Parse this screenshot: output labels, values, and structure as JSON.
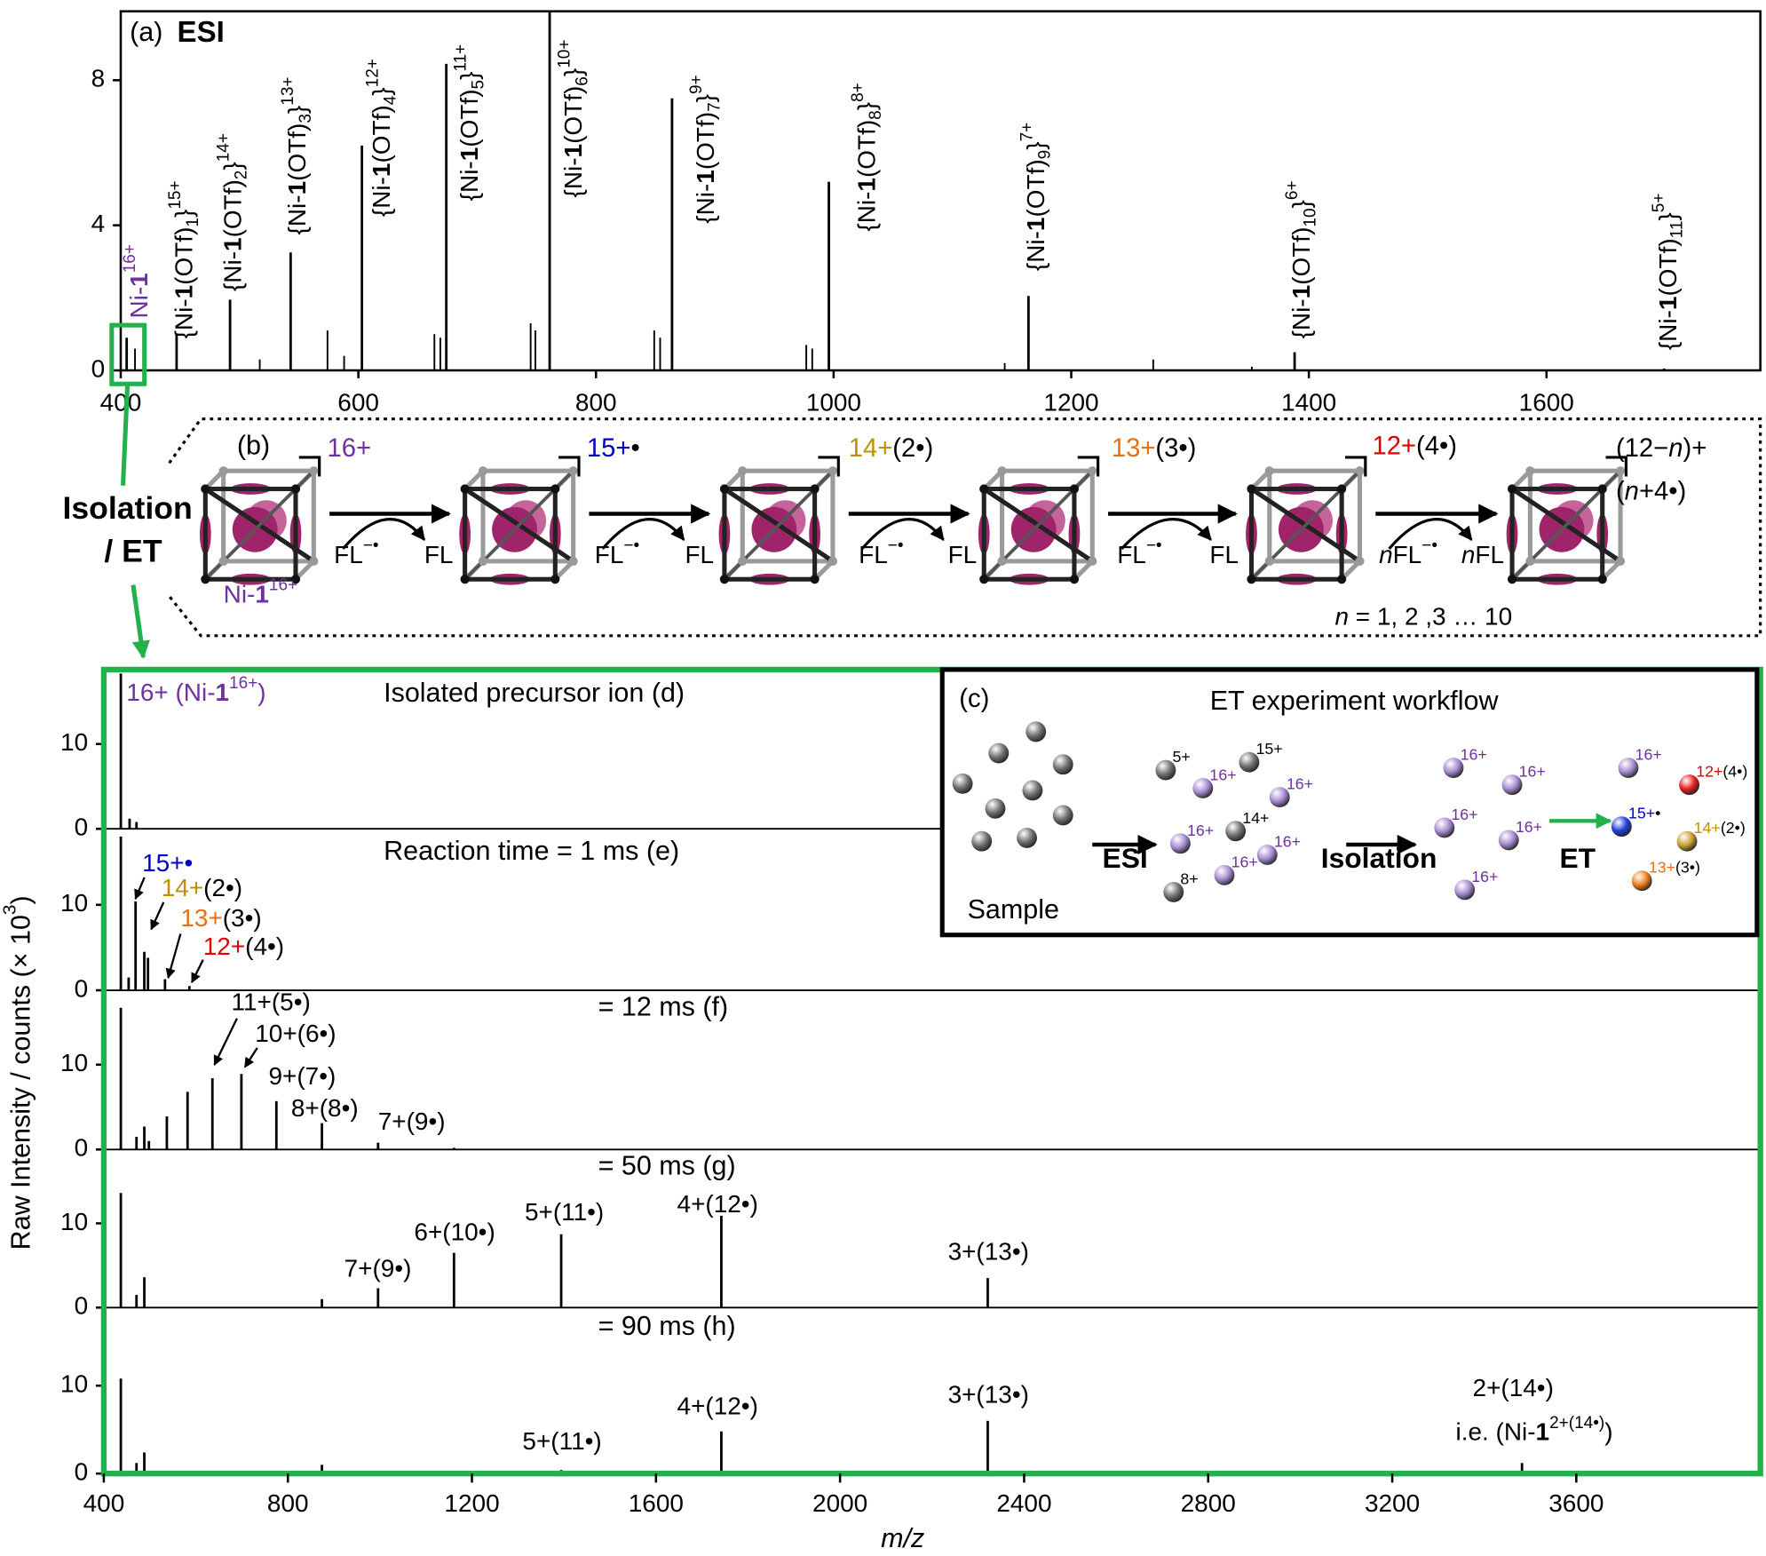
{
  "chart_data": [
    {
      "type": "spectrum",
      "panel": "(a)",
      "title": "ESI",
      "color": "#000000",
      "xlim": [
        400,
        1780
      ],
      "xticks": [
        400,
        600,
        800,
        1000,
        1200,
        1400,
        1600
      ],
      "ylim": [
        0,
        9.9
      ],
      "yticks": [
        0,
        4,
        8
      ],
      "x": [
        405,
        447,
        492,
        543,
        603,
        674,
        761,
        864,
        996,
        1164,
        1388,
        1699
      ],
      "values": [
        0.9,
        1.0,
        1.95,
        3.25,
        6.2,
        8.45,
        9.9,
        7.5,
        5.2,
        2.05,
        0.5,
        0.05
      ],
      "peak_labels": [
        {
          "parts": [
            {
              "t": "Ni-",
              "c": "#7030a0"
            },
            {
              "t": "1",
              "b": true,
              "c": "#7030a0"
            },
            {
              "t": "16+",
              "sup": true,
              "c": "#7030a0"
            }
          ]
        },
        {
          "parts": [
            {
              "t": "{Ni-"
            },
            {
              "t": "1",
              "b": true
            },
            {
              "t": "(OTf)"
            },
            {
              "t": "1",
              "sub": true
            },
            {
              "t": "}"
            },
            {
              "t": "15+",
              "sup": true
            }
          ]
        },
        {
          "parts": [
            {
              "t": "{Ni-"
            },
            {
              "t": "1",
              "b": true
            },
            {
              "t": "(OTf)"
            },
            {
              "t": "2",
              "sub": true
            },
            {
              "t": "}"
            },
            {
              "t": "14+",
              "sup": true
            }
          ]
        },
        {
          "parts": [
            {
              "t": "{Ni-"
            },
            {
              "t": "1",
              "b": true
            },
            {
              "t": "(OTf)"
            },
            {
              "t": "3",
              "sub": true
            },
            {
              "t": "}"
            },
            {
              "t": "13+",
              "sup": true
            }
          ]
        },
        {
          "parts": [
            {
              "t": "{Ni-"
            },
            {
              "t": "1",
              "b": true
            },
            {
              "t": "(OTf)"
            },
            {
              "t": "4",
              "sub": true
            },
            {
              "t": "}"
            },
            {
              "t": "12+",
              "sup": true
            }
          ]
        },
        {
          "parts": [
            {
              "t": "{Ni-"
            },
            {
              "t": "1",
              "b": true
            },
            {
              "t": "(OTf)"
            },
            {
              "t": "5",
              "sub": true
            },
            {
              "t": "}"
            },
            {
              "t": "11+",
              "sup": true
            }
          ]
        },
        {
          "parts": [
            {
              "t": "{Ni-"
            },
            {
              "t": "1",
              "b": true
            },
            {
              "t": "(OTf)"
            },
            {
              "t": "6",
              "sub": true
            },
            {
              "t": "}"
            },
            {
              "t": "10+",
              "sup": true
            }
          ]
        },
        {
          "parts": [
            {
              "t": "{Ni-"
            },
            {
              "t": "1",
              "b": true
            },
            {
              "t": "(OTf)"
            },
            {
              "t": "7",
              "sub": true
            },
            {
              "t": "}"
            },
            {
              "t": "9+",
              "sup": true
            }
          ]
        },
        {
          "parts": [
            {
              "t": "{Ni-"
            },
            {
              "t": "1",
              "b": true
            },
            {
              "t": "(OTf)"
            },
            {
              "t": "8",
              "sub": true
            },
            {
              "t": "}"
            },
            {
              "t": "8+",
              "sup": true
            }
          ]
        },
        {
          "parts": [
            {
              "t": "{Ni-"
            },
            {
              "t": "1",
              "b": true
            },
            {
              "t": "(OTf)"
            },
            {
              "t": "9",
              "sub": true
            },
            {
              "t": "}"
            },
            {
              "t": "7+",
              "sup": true
            }
          ]
        },
        {
          "parts": [
            {
              "t": "{Ni-"
            },
            {
              "t": "1",
              "b": true
            },
            {
              "t": "(OTf)"
            },
            {
              "t": "10",
              "sub": true
            },
            {
              "t": "}"
            },
            {
              "t": "6+",
              "sup": true
            }
          ]
        },
        {
          "parts": [
            {
              "t": "{Ni-"
            },
            {
              "t": "1",
              "b": true
            },
            {
              "t": "(OTf)"
            },
            {
              "t": "11",
              "sub": true
            },
            {
              "t": "}"
            },
            {
              "t": "5+",
              "sup": true
            }
          ]
        }
      ],
      "minor_x": [
        412,
        517,
        574,
        588,
        664,
        669,
        745,
        749,
        849,
        854,
        977,
        982,
        1144,
        1269,
        1352
      ],
      "minor_values": [
        0.6,
        0.3,
        1.1,
        0.4,
        1.0,
        0.9,
        1.3,
        1.1,
        1.1,
        0.9,
        0.7,
        0.6,
        0.2,
        0.3,
        0.1
      ]
    },
    {
      "type": "stacked_spectra",
      "color": "#000000",
      "frame_color": "#22b14c",
      "xlim": [
        400,
        4000
      ],
      "xticks": [
        400,
        800,
        1200,
        1600,
        2000,
        2400,
        2800,
        3200,
        3600
      ],
      "ylim": [
        0,
        18.5
      ],
      "yticks": [
        0,
        10
      ],
      "xlabel": [
        {
          "t": "m/z",
          "i": true
        }
      ],
      "ylabel": [
        {
          "t": "Raw Intensity / counts (× 10"
        },
        {
          "t": "3",
          "sup": true
        },
        {
          "t": ")"
        }
      ],
      "panels": [
        {
          "title": "Isolated precursor ion (d)",
          "x": [
            437,
            456,
            471
          ],
          "values": [
            18.3,
            1.2,
            0.8
          ],
          "annotations": [
            {
              "parts": [
                {
                  "t": "16+ (Ni-",
                  "c": "#7030a0"
                },
                {
                  "t": "1",
                  "b": true,
                  "c": "#7030a0"
                },
                {
                  "t": "16+",
                  "sup": true,
                  "c": "#7030a0"
                },
                {
                  "t": ")",
                  "c": "#7030a0"
                }
              ]
            }
          ]
        },
        {
          "title": "Reaction time = 1 ms (e)",
          "x": [
            437,
            454,
            469,
            488,
            496,
            533,
            586
          ],
          "values": [
            18,
            1.5,
            10.4,
            4.5,
            3.8,
            1.3,
            0.5
          ],
          "annotations": [
            {
              "parts": [
                {
                  "t": "15+•",
                  "c": "#0000cc"
                }
              ]
            },
            {
              "parts": [
                {
                  "t": "14+",
                  "c": "#c09000"
                },
                {
                  "t": "(2•)"
                }
              ]
            },
            {
              "parts": [
                {
                  "t": "13+",
                  "c": "#e87010"
                },
                {
                  "t": "(3•)"
                }
              ]
            },
            {
              "parts": [
                {
                  "t": "12+",
                  "c": "#e00000"
                },
                {
                  "t": "(4•)"
                }
              ]
            }
          ]
        },
        {
          "title": "= 12 ms (f)",
          "x": [
            437,
            471,
            488,
            498,
            537,
            582,
            636,
            699,
            775,
            874,
            996,
            1161
          ],
          "values": [
            16.7,
            1.5,
            2.7,
            1.0,
            3.9,
            6.8,
            8.4,
            8.9,
            5.7,
            3.1,
            0.8,
            0.2
          ],
          "annotations": [
            {
              "parts": [
                {
                  "t": "11+(5•)"
                }
              ]
            },
            {
              "parts": [
                {
                  "t": "10+(6•)"
                }
              ]
            },
            {
              "parts": [
                {
                  "t": "9+(7•)"
                }
              ]
            },
            {
              "parts": [
                {
                  "t": "8+(8•)"
                }
              ]
            },
            {
              "parts": [
                {
                  "t": "7+(9•)"
                }
              ]
            }
          ]
        },
        {
          "title": "= 50 ms (g)",
          "x": [
            437,
            471,
            488,
            874,
            996,
            1161,
            1394,
            1742,
            2321
          ],
          "values": [
            13.6,
            1.5,
            3.6,
            1.0,
            2.3,
            6.5,
            8.7,
            10.9,
            3.5
          ],
          "annotations": [
            {
              "parts": [
                {
                  "t": "7+(9•)"
                }
              ]
            },
            {
              "parts": [
                {
                  "t": "6+(10•)"
                }
              ]
            },
            {
              "parts": [
                {
                  "t": "5+(11•)"
                }
              ]
            },
            {
              "parts": [
                {
                  "t": "4+(12•)"
                }
              ]
            },
            {
              "parts": [
                {
                  "t": "3+(13•)"
                }
              ]
            }
          ]
        },
        {
          "title": "= 90 ms (h)",
          "x": [
            437,
            471,
            488,
            874,
            1394,
            1742,
            2321,
            3482
          ],
          "values": [
            10.8,
            1.2,
            2.4,
            1.0,
            0.4,
            4.8,
            6.0,
            1.2
          ],
          "annotations": [
            {
              "parts": [
                {
                  "t": "5+(11•)"
                }
              ]
            },
            {
              "parts": [
                {
                  "t": "4+(12•)"
                }
              ]
            },
            {
              "parts": [
                {
                  "t": "3+(13•)"
                }
              ]
            },
            {
              "parts": [
                {
                  "t": "2+(14•)"
                }
              ]
            },
            {
              "parts": [
                {
                  "t": "i.e. (Ni-"
                },
                {
                  "t": "1",
                  "b": true
                },
                {
                  "t": "2+(14•)",
                  "sup": true
                },
                {
                  "t": ")"
                }
              ]
            }
          ]
        }
      ]
    }
  ],
  "scheme": {
    "label": "(b)",
    "left": [
      "Isolation",
      "/ ET"
    ],
    "charges": [
      {
        "parts": [
          {
            "t": "16+",
            "c": "#7030a0"
          }
        ]
      },
      {
        "parts": [
          {
            "t": "15+",
            "c": "#0000cc"
          },
          {
            "t": "•"
          }
        ]
      },
      {
        "parts": [
          {
            "t": "14+",
            "c": "#c09000"
          },
          {
            "t": "(2•)"
          }
        ]
      },
      {
        "parts": [
          {
            "t": "13+",
            "c": "#e87010"
          },
          {
            "t": "(3•)"
          }
        ]
      },
      {
        "parts": [
          {
            "t": "12+",
            "c": "#e00000"
          },
          {
            "t": "(4•)"
          }
        ]
      },
      {
        "parts": [
          {
            "t": "(12−"
          },
          {
            "t": "n",
            "i": true
          },
          {
            "t": ")+"
          }
        ]
      },
      {
        "parts": [
          {
            "t": "("
          },
          {
            "t": "n",
            "i": true
          },
          {
            "t": "+4•)"
          }
        ]
      }
    ],
    "reagents": [
      {
        "parts": [
          {
            "t": "FL"
          },
          {
            "t": "−•",
            "sup": true
          }
        ]
      },
      {
        "parts": [
          {
            "t": "FL"
          },
          {
            "t": "−•",
            "sup": true
          }
        ]
      },
      {
        "parts": [
          {
            "t": "FL"
          },
          {
            "t": "−•",
            "sup": true
          }
        ]
      },
      {
        "parts": [
          {
            "t": "FL"
          },
          {
            "t": "−•",
            "sup": true
          }
        ]
      },
      {
        "parts": [
          {
            "t": "n",
            "i": true
          },
          {
            "t": "FL"
          },
          {
            "t": "−•",
            "sup": true
          }
        ]
      }
    ],
    "products": [
      {
        "parts": [
          {
            "t": "FL"
          }
        ]
      },
      {
        "parts": [
          {
            "t": "FL"
          }
        ]
      },
      {
        "parts": [
          {
            "t": "FL"
          }
        ]
      },
      {
        "parts": [
          {
            "t": "FL"
          }
        ]
      },
      {
        "parts": [
          {
            "t": "n",
            "i": true
          },
          {
            "t": "FL"
          }
        ]
      }
    ],
    "ni_label": [
      {
        "t": "Ni-",
        "c": "#7030a0"
      },
      {
        "t": "1",
        "b": true,
        "c": "#7030a0"
      },
      {
        "t": "16+",
        "sup": true,
        "c": "#7030a0"
      }
    ],
    "n_range": [
      {
        "t": "n",
        "i": true
      },
      {
        "t": " = 1, 2 ,3 … 10"
      }
    ]
  },
  "workflow": {
    "label": "(c)",
    "title": "ET experiment workflow",
    "sample": "Sample",
    "steps": [
      "ESI",
      "Isolation",
      "ET"
    ],
    "sample_color": "#707070",
    "esi_balls": [
      {
        "color": "#707070",
        "parts": [
          {
            "t": "5+"
          }
        ]
      },
      {
        "color": "#707070",
        "parts": [
          {
            "t": "15+"
          }
        ]
      },
      {
        "color": "#a58bd0",
        "parts": [
          {
            "t": "16+",
            "c": "#7030a0"
          }
        ]
      },
      {
        "color": "#a58bd0",
        "parts": [
          {
            "t": "16+",
            "c": "#7030a0"
          }
        ]
      },
      {
        "color": "#707070",
        "parts": [
          {
            "t": "14+"
          }
        ]
      },
      {
        "color": "#a58bd0",
        "parts": [
          {
            "t": "16+",
            "c": "#7030a0"
          }
        ]
      },
      {
        "color": "#a58bd0",
        "parts": [
          {
            "t": "16+",
            "c": "#7030a0"
          }
        ]
      },
      {
        "color": "#a58bd0",
        "parts": [
          {
            "t": "16+",
            "c": "#7030a0"
          }
        ]
      },
      {
        "color": "#707070",
        "parts": [
          {
            "t": "8+"
          }
        ]
      }
    ],
    "isolation_balls": [
      {
        "color": "#a58bd0",
        "parts": [
          {
            "t": "16+",
            "c": "#7030a0"
          }
        ]
      },
      {
        "color": "#a58bd0",
        "parts": [
          {
            "t": "16+",
            "c": "#7030a0"
          }
        ]
      },
      {
        "color": "#a58bd0",
        "parts": [
          {
            "t": "16+",
            "c": "#7030a0"
          }
        ]
      },
      {
        "color": "#a58bd0",
        "parts": [
          {
            "t": "16+",
            "c": "#7030a0"
          }
        ]
      },
      {
        "color": "#a58bd0",
        "parts": [
          {
            "t": "16+",
            "c": "#7030a0"
          }
        ]
      }
    ],
    "et_balls": [
      {
        "color": "#a58bd0",
        "parts": [
          {
            "t": "16+",
            "c": "#7030a0"
          }
        ]
      },
      {
        "color": "#e52020",
        "parts": [
          {
            "t": "12+",
            "c": "#e00000"
          },
          {
            "t": "(4•)"
          }
        ]
      },
      {
        "color": "#2040e0",
        "parts": [
          {
            "t": "15+",
            "c": "#0000cc"
          },
          {
            "t": "•"
          }
        ]
      },
      {
        "color": "#c8a030",
        "parts": [
          {
            "t": "14+",
            "c": "#c09000"
          },
          {
            "t": "(2•)"
          }
        ]
      },
      {
        "color": "#f08020",
        "parts": [
          {
            "t": "13+",
            "c": "#e87010"
          },
          {
            "t": "(3•)"
          }
        ]
      }
    ]
  }
}
